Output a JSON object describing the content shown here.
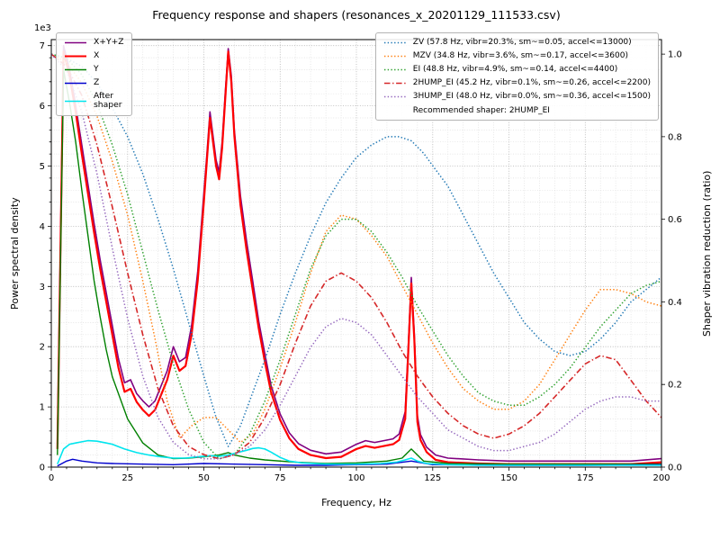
{
  "chart_data": {
    "type": "line",
    "title": "Frequency response and shapers (resonances_x_20201129_111533.csv)",
    "xlabel": "Frequency, Hz",
    "ylabel": "Power spectral density",
    "ylabel_right": "Shaper vibration reduction (ratio)",
    "y_offset_text": "1e3",
    "xlim": [
      0,
      200
    ],
    "ylim_left": [
      0,
      7.1
    ],
    "ylim_right": [
      0,
      1.035
    ],
    "x_ticks": [
      0,
      25,
      50,
      75,
      100,
      125,
      150,
      175,
      200
    ],
    "x_major_step": 25,
    "x_minor_step": 5,
    "y_ticks_left": [
      0,
      1,
      2,
      3,
      4,
      5,
      6,
      7
    ],
    "y_minor_step": 0.2,
    "y_ticks_right": [
      0.0,
      0.2,
      0.4,
      0.6,
      0.8,
      1.0
    ],
    "grid": "both",
    "psd_unit_note": "left-axis values are in units of 1e3 (axis offset text)",
    "legend_note": "Recommended shaper: 2HUMP_EI",
    "series": [
      {
        "name": "x-plus-y-plus-z",
        "label": "X+Y+Z",
        "axis": "left",
        "legend": "left",
        "color": "#800080",
        "style": "solid",
        "width": 1.6,
        "x": [
          2,
          4,
          6,
          8,
          10,
          12,
          14,
          16,
          18,
          20,
          22,
          24,
          26,
          28,
          30,
          32,
          34,
          36,
          38,
          40,
          42,
          44,
          46,
          48,
          50,
          51,
          52,
          53,
          54,
          55,
          56,
          57,
          58,
          59,
          60,
          62,
          64,
          66,
          68,
          70,
          72,
          75,
          78,
          81,
          85,
          90,
          95,
          100,
          103,
          106,
          109,
          112,
          114,
          116,
          117,
          118,
          119,
          120,
          121,
          123,
          126,
          130,
          140,
          150,
          160,
          170,
          180,
          190,
          200
        ],
        "y": [
          0.4,
          7.0,
          6.6,
          6.0,
          5.35,
          4.7,
          4.05,
          3.45,
          2.9,
          2.35,
          1.8,
          1.4,
          1.45,
          1.22,
          1.1,
          1.0,
          1.1,
          1.35,
          1.6,
          2.0,
          1.75,
          1.82,
          2.35,
          3.25,
          4.55,
          5.2,
          5.9,
          5.5,
          5.1,
          4.9,
          5.4,
          6.2,
          6.95,
          6.5,
          5.6,
          4.5,
          3.75,
          3.1,
          2.42,
          1.88,
          1.36,
          0.88,
          0.57,
          0.39,
          0.28,
          0.22,
          0.25,
          0.38,
          0.44,
          0.41,
          0.44,
          0.47,
          0.55,
          0.92,
          2.0,
          3.15,
          2.2,
          0.85,
          0.54,
          0.33,
          0.2,
          0.15,
          0.12,
          0.1,
          0.1,
          0.1,
          0.1,
          0.1,
          0.14
        ]
      },
      {
        "name": "x",
        "label": "X",
        "axis": "left",
        "legend": "left",
        "color": "#ff0000",
        "style": "solid",
        "width": 2.2,
        "x": [
          2,
          4,
          6,
          8,
          10,
          12,
          14,
          16,
          18,
          20,
          22,
          24,
          26,
          28,
          30,
          32,
          34,
          36,
          38,
          40,
          42,
          44,
          46,
          48,
          50,
          51,
          52,
          53,
          54,
          55,
          56,
          57,
          58,
          59,
          60,
          62,
          64,
          66,
          68,
          70,
          72,
          75,
          78,
          81,
          85,
          90,
          95,
          100,
          103,
          106,
          109,
          112,
          114,
          116,
          117,
          118,
          119,
          120,
          121,
          123,
          126,
          130,
          140,
          150,
          160,
          170,
          180,
          190,
          200
        ],
        "y": [
          0.3,
          6.9,
          6.5,
          5.9,
          5.2,
          4.55,
          3.9,
          3.3,
          2.75,
          2.2,
          1.65,
          1.25,
          1.3,
          1.08,
          0.95,
          0.85,
          0.95,
          1.2,
          1.45,
          1.85,
          1.6,
          1.68,
          2.2,
          3.1,
          4.4,
          5.1,
          5.8,
          5.4,
          5.0,
          4.78,
          5.3,
          6.1,
          6.9,
          6.4,
          5.5,
          4.35,
          3.6,
          2.95,
          2.3,
          1.75,
          1.25,
          0.78,
          0.48,
          0.3,
          0.2,
          0.15,
          0.17,
          0.3,
          0.35,
          0.32,
          0.35,
          0.38,
          0.45,
          0.8,
          1.9,
          3.05,
          2.1,
          0.75,
          0.45,
          0.25,
          0.12,
          0.08,
          0.06,
          0.05,
          0.05,
          0.05,
          0.05,
          0.05,
          0.08
        ]
      },
      {
        "name": "y",
        "label": "Y",
        "axis": "left",
        "legend": "left",
        "color": "#008000",
        "style": "solid",
        "width": 1.4,
        "x": [
          2,
          4,
          6,
          8,
          10,
          12,
          14,
          16,
          18,
          20,
          25,
          30,
          35,
          40,
          45,
          50,
          55,
          58,
          60,
          65,
          70,
          80,
          90,
          100,
          110,
          115,
          118,
          122,
          130,
          150,
          175,
          200
        ],
        "y": [
          0.2,
          6.6,
          6.05,
          5.4,
          4.6,
          3.85,
          3.1,
          2.5,
          1.95,
          1.5,
          0.8,
          0.4,
          0.2,
          0.14,
          0.15,
          0.17,
          0.2,
          0.24,
          0.2,
          0.15,
          0.12,
          0.08,
          0.06,
          0.07,
          0.1,
          0.15,
          0.3,
          0.1,
          0.06,
          0.05,
          0.05,
          0.05
        ]
      },
      {
        "name": "z",
        "label": "Z",
        "axis": "left",
        "legend": "left",
        "color": "#0000cd",
        "style": "solid",
        "width": 1.4,
        "x": [
          2,
          5,
          7,
          10,
          15,
          20,
          30,
          40,
          50,
          60,
          70,
          80,
          90,
          100,
          110,
          118,
          125,
          150,
          175,
          200
        ],
        "y": [
          0.02,
          0.1,
          0.13,
          0.1,
          0.07,
          0.06,
          0.05,
          0.04,
          0.06,
          0.05,
          0.04,
          0.03,
          0.03,
          0.04,
          0.05,
          0.1,
          0.04,
          0.03,
          0.03,
          0.04
        ]
      },
      {
        "name": "after-shaper",
        "label": "After\nshaper",
        "axis": "left",
        "legend": "left",
        "color": "#00e5ee",
        "style": "solid",
        "width": 1.6,
        "x": [
          2,
          4,
          6,
          8,
          10,
          12,
          15,
          18,
          20,
          24,
          28,
          32,
          36,
          40,
          44,
          48,
          52,
          55,
          58,
          61,
          64,
          66,
          68,
          70,
          72,
          75,
          78,
          82,
          90,
          100,
          108,
          113,
          116,
          118,
          120,
          123,
          130,
          140,
          160,
          180,
          200
        ],
        "y": [
          0.05,
          0.3,
          0.38,
          0.4,
          0.42,
          0.44,
          0.43,
          0.4,
          0.38,
          0.3,
          0.24,
          0.2,
          0.17,
          0.15,
          0.15,
          0.17,
          0.19,
          0.18,
          0.2,
          0.24,
          0.28,
          0.31,
          0.32,
          0.3,
          0.25,
          0.16,
          0.1,
          0.07,
          0.05,
          0.05,
          0.06,
          0.08,
          0.12,
          0.15,
          0.1,
          0.06,
          0.04,
          0.03,
          0.03,
          0.03,
          0.03
        ]
      },
      {
        "name": "shaper-zv",
        "label": "ZV (57.8 Hz, vibr=20.3%, sm~=0.05, accel<=13000)",
        "axis": "right",
        "legend": "right",
        "color": "#1f77b4",
        "style": "dotted",
        "width": 1.5,
        "x": [
          0,
          5,
          10,
          15,
          20,
          25,
          30,
          35,
          40,
          45,
          50,
          54,
          58,
          62,
          66,
          70,
          75,
          80,
          85,
          90,
          95,
          100,
          105,
          110,
          114,
          118,
          122,
          126,
          130,
          135,
          140,
          145,
          150,
          155,
          160,
          165,
          170,
          175,
          180,
          185,
          190,
          195,
          200
        ],
        "y": [
          1.0,
          0.99,
          0.97,
          0.93,
          0.87,
          0.8,
          0.71,
          0.6,
          0.48,
          0.35,
          0.22,
          0.12,
          0.05,
          0.1,
          0.18,
          0.26,
          0.37,
          0.47,
          0.56,
          0.64,
          0.7,
          0.75,
          0.78,
          0.8,
          0.8,
          0.79,
          0.76,
          0.72,
          0.68,
          0.61,
          0.54,
          0.47,
          0.41,
          0.35,
          0.31,
          0.28,
          0.27,
          0.28,
          0.31,
          0.35,
          0.4,
          0.43,
          0.46
        ]
      },
      {
        "name": "shaper-mzv",
        "label": "MZV (34.8 Hz, vibr=3.6%, sm~=0.17, accel<=3600)",
        "axis": "right",
        "legend": "right",
        "color": "#ff7f0e",
        "style": "dotted",
        "width": 1.5,
        "x": [
          0,
          5,
          10,
          15,
          20,
          25,
          30,
          34,
          38,
          42,
          46,
          50,
          54,
          58,
          62,
          66,
          70,
          75,
          80,
          85,
          90,
          95,
          100,
          105,
          110,
          115,
          120,
          125,
          130,
          135,
          140,
          145,
          150,
          155,
          160,
          165,
          170,
          175,
          180,
          185,
          190,
          195,
          200
        ],
        "y": [
          1.0,
          0.98,
          0.93,
          0.85,
          0.74,
          0.61,
          0.45,
          0.31,
          0.16,
          0.07,
          0.1,
          0.12,
          0.12,
          0.09,
          0.06,
          0.08,
          0.14,
          0.24,
          0.35,
          0.47,
          0.57,
          0.61,
          0.6,
          0.56,
          0.51,
          0.44,
          0.37,
          0.3,
          0.24,
          0.19,
          0.16,
          0.14,
          0.14,
          0.16,
          0.2,
          0.26,
          0.32,
          0.38,
          0.43,
          0.43,
          0.42,
          0.4,
          0.39
        ]
      },
      {
        "name": "shaper-ei",
        "label": "EI (48.8 Hz, vibr=4.9%, sm~=0.14, accel<=4400)",
        "axis": "right",
        "legend": "right",
        "color": "#2ca02c",
        "style": "dotted",
        "width": 1.5,
        "x": [
          0,
          5,
          10,
          15,
          20,
          25,
          30,
          35,
          40,
          45,
          50,
          55,
          60,
          65,
          70,
          75,
          80,
          85,
          90,
          95,
          100,
          105,
          110,
          115,
          120,
          125,
          130,
          135,
          140,
          145,
          150,
          155,
          160,
          165,
          170,
          175,
          180,
          185,
          190,
          195,
          200
        ],
        "y": [
          1.0,
          0.99,
          0.95,
          0.88,
          0.78,
          0.66,
          0.52,
          0.38,
          0.25,
          0.14,
          0.06,
          0.02,
          0.03,
          0.08,
          0.16,
          0.26,
          0.37,
          0.48,
          0.56,
          0.6,
          0.6,
          0.57,
          0.52,
          0.46,
          0.39,
          0.33,
          0.27,
          0.22,
          0.18,
          0.16,
          0.15,
          0.15,
          0.17,
          0.2,
          0.24,
          0.29,
          0.34,
          0.38,
          0.42,
          0.44,
          0.45
        ]
      },
      {
        "name": "shaper-2hump-ei",
        "label": "2HUMP_EI (45.2 Hz, vibr=0.1%, sm~=0.26, accel<=2200)",
        "axis": "right",
        "legend": "right",
        "color": "#d62728",
        "style": "dashdot",
        "width": 1.6,
        "x": [
          0,
          5,
          10,
          15,
          20,
          25,
          30,
          35,
          40,
          45,
          50,
          55,
          60,
          65,
          70,
          75,
          80,
          85,
          90,
          95,
          100,
          105,
          110,
          115,
          120,
          125,
          130,
          135,
          140,
          145,
          150,
          155,
          160,
          165,
          170,
          175,
          180,
          185,
          190,
          195,
          200
        ],
        "y": [
          1.0,
          0.97,
          0.9,
          0.78,
          0.63,
          0.47,
          0.32,
          0.19,
          0.1,
          0.05,
          0.03,
          0.02,
          0.03,
          0.06,
          0.12,
          0.2,
          0.3,
          0.39,
          0.45,
          0.47,
          0.45,
          0.41,
          0.35,
          0.28,
          0.22,
          0.17,
          0.13,
          0.1,
          0.08,
          0.07,
          0.08,
          0.1,
          0.13,
          0.17,
          0.21,
          0.25,
          0.27,
          0.26,
          0.21,
          0.16,
          0.12
        ]
      },
      {
        "name": "shaper-3hump-ei",
        "label": "3HUMP_EI (48.0 Hz, vibr=0.0%, sm~=0.36, accel<=1500)",
        "axis": "right",
        "legend": "right",
        "color": "#9467bd",
        "style": "dotted",
        "width": 1.5,
        "x": [
          0,
          5,
          10,
          15,
          20,
          25,
          30,
          35,
          40,
          45,
          50,
          55,
          60,
          65,
          70,
          75,
          80,
          85,
          90,
          95,
          100,
          105,
          110,
          115,
          120,
          125,
          130,
          135,
          140,
          145,
          150,
          155,
          160,
          165,
          170,
          175,
          180,
          185,
          190,
          195,
          200
        ],
        "y": [
          1.0,
          0.96,
          0.86,
          0.71,
          0.53,
          0.36,
          0.22,
          0.12,
          0.06,
          0.03,
          0.02,
          0.02,
          0.03,
          0.05,
          0.09,
          0.15,
          0.22,
          0.29,
          0.34,
          0.36,
          0.35,
          0.32,
          0.27,
          0.22,
          0.17,
          0.13,
          0.09,
          0.07,
          0.05,
          0.04,
          0.04,
          0.05,
          0.06,
          0.08,
          0.11,
          0.14,
          0.16,
          0.17,
          0.17,
          0.16,
          0.16
        ]
      }
    ]
  }
}
